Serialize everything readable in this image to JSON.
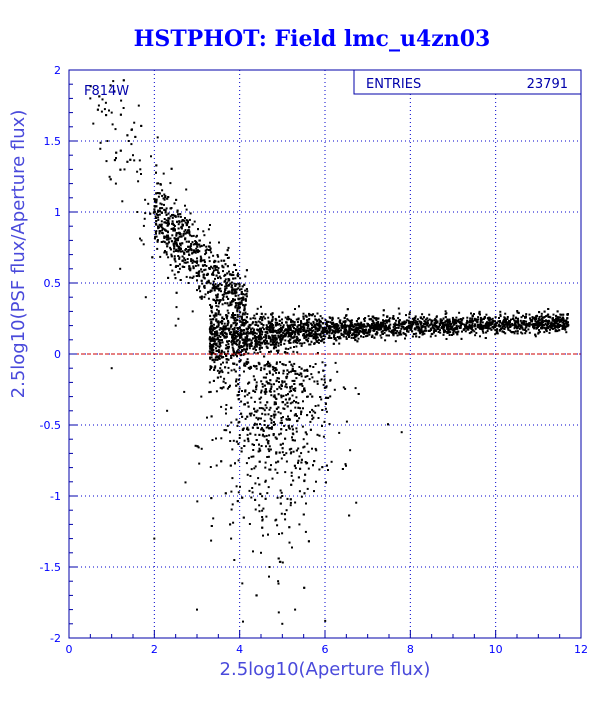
{
  "chart_data": {
    "type": "scatter",
    "title": "HSTPHOT: Field lmc_u4zn03",
    "xlabel": "2.5log10(Aperture flux)",
    "ylabel": "2.5log10(PSF flux/Aperture flux)",
    "xlim": [
      0,
      12
    ],
    "ylim": [
      -2,
      2
    ],
    "xticks": [
      "0",
      "2",
      "4",
      "6",
      "8",
      "10",
      "12"
    ],
    "yticks": [
      "-2",
      "-1.5",
      "-1",
      "-0.5",
      "0",
      "0.5",
      "1",
      "1.5",
      "2"
    ],
    "grid": true,
    "annotation": "F814W",
    "reference_line_y": 0,
    "stats": {
      "label": "ENTRIES",
      "value": "23791"
    },
    "colors": {
      "title": "#0000ff",
      "frame": "#0000aa",
      "grid": "#0000cc",
      "points": "#000000",
      "reference_line": "#cc0000"
    },
    "series": [
      {
        "x": [
          0.5,
          0.7,
          0.9,
          1.0,
          1.1,
          1.3,
          1.4,
          1.5,
          1.6,
          1.7,
          1.2,
          1.8,
          2.0,
          2.2,
          2.4,
          2.6,
          2.8,
          3.0,
          3.2,
          3.4,
          3.6,
          2.9,
          2.5,
          2.3,
          3.1,
          3.3,
          3.5,
          3.7,
          3.9,
          4.1,
          4.3,
          4.5,
          4.7,
          4.9,
          5.1,
          5.3,
          5.5,
          5.7,
          5.9,
          6.1,
          6.3,
          6.5,
          6.7,
          6.9,
          7.1,
          7.3,
          7.5,
          7.7,
          7.9,
          8.1,
          8.3,
          8.5,
          8.7,
          8.9,
          9.1,
          9.3,
          9.5,
          9.7,
          9.9,
          10.1,
          10.3,
          10.5,
          10.7,
          10.9,
          11.1,
          11.3,
          11.5,
          11.7,
          4.0,
          4.4,
          4.8,
          5.2,
          5.6,
          6.0,
          4.2,
          4.6,
          5.0,
          5.4,
          4.5,
          4.9,
          5.3,
          5.0,
          4.8,
          5.2,
          4.6,
          3.8,
          4.7,
          5.1,
          4.4,
          5.5,
          1.0,
          2.0,
          3.0
        ],
        "y": [
          1.8,
          1.75,
          1.5,
          1.7,
          1.2,
          1.3,
          1.5,
          1.4,
          1.0,
          0.8,
          0.6,
          0.4,
          1.0,
          0.85,
          0.7,
          0.6,
          0.5,
          0.45,
          0.42,
          0.38,
          0.35,
          0.3,
          0.2,
          -0.4,
          -0.3,
          -0.2,
          0.28,
          0.25,
          0.22,
          0.2,
          0.18,
          0.17,
          0.16,
          0.15,
          0.15,
          0.14,
          0.14,
          0.13,
          0.13,
          0.13,
          0.12,
          0.12,
          0.12,
          0.12,
          0.12,
          0.13,
          0.13,
          0.13,
          0.13,
          0.14,
          0.14,
          0.14,
          0.15,
          0.15,
          0.15,
          0.16,
          0.16,
          0.16,
          0.17,
          0.17,
          0.17,
          0.18,
          0.18,
          0.18,
          0.19,
          0.19,
          0.2,
          0.2,
          -0.1,
          -0.2,
          -0.3,
          -0.4,
          -0.3,
          -0.2,
          -0.6,
          -0.8,
          -1.0,
          -1.2,
          -1.4,
          -1.6,
          -1.8,
          -1.9,
          -0.5,
          -0.7,
          -0.9,
          -1.3,
          -1.5,
          -1.1,
          -1.7,
          -0.6,
          -0.1,
          -1.3,
          -1.8
        ]
      }
    ]
  }
}
